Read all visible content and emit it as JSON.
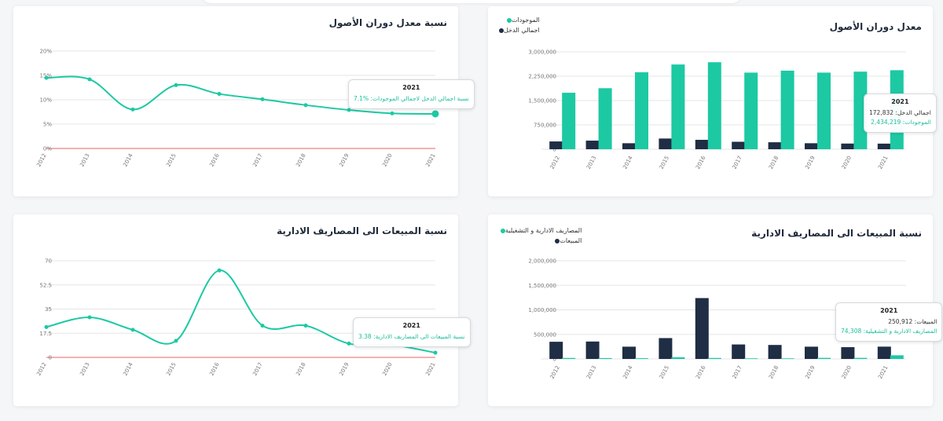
{
  "colors": {
    "teal": "#1cc9a3",
    "navy": "#1f2d45",
    "red": "#f08080",
    "grid": "#e5e5e5"
  },
  "cards": {
    "asset_turnover_line": {
      "title": "نسبة معدل دوران الأصول",
      "tooltip": {
        "year": "2021",
        "label": "نسبة اجمالي الدخل لاجمالي الموجودات:",
        "value": "%7.1"
      }
    },
    "asset_turnover_bars": {
      "title": "معدل دوران الأصول",
      "legend": [
        "الموجودات",
        "اجمالي الدخل"
      ],
      "tooltip": {
        "year": "2021",
        "income_label": "اجمالي الدخل:",
        "income_value": "172,832",
        "assets_label": "الموجودات:",
        "assets_value": "2,434,219"
      }
    },
    "sales_expense_line": {
      "title": "نسبة المبيعات الى المصاريف الادارية",
      "tooltip": {
        "year": "2021",
        "label": "نسبة المبيعات الى المصاريف الادارية:",
        "value": "3.38"
      }
    },
    "sales_expense_bars": {
      "title": "نسبة المبيعات الى المصاريف الادارية",
      "legend": [
        "المصاريف الادارية و التشغيلية",
        "المبيعات"
      ],
      "tooltip": {
        "year": "2021",
        "sales_label": "المبيعات:",
        "sales_value": "250,912",
        "expense_label": "المصاريف الادارية و التشغيلية:",
        "expense_value": "74,308"
      }
    }
  },
  "chart_data": [
    {
      "id": "asset_turnover_line",
      "type": "line",
      "title": "نسبة معدل دوران الأصول",
      "x": [
        "2012",
        "2013",
        "2014",
        "2015",
        "2016",
        "2017",
        "2018",
        "2019",
        "2020",
        "2021"
      ],
      "series": [
        {
          "name": "نسبة اجمالي الدخل لاجمالي الموجودات",
          "values": [
            14.5,
            14.2,
            8.0,
            13.0,
            11.2,
            10.1,
            8.9,
            7.9,
            7.2,
            7.1
          ]
        }
      ],
      "yticks": [
        0,
        5,
        10,
        15,
        20
      ],
      "ytick_labels": [
        "0%",
        "5%",
        "10%",
        "15%",
        "20%"
      ],
      "ylim": [
        0,
        20
      ]
    },
    {
      "id": "asset_turnover_bars",
      "type": "bar",
      "title": "معدل دوران الأصول",
      "categories": [
        "2012",
        "2013",
        "2014",
        "2015",
        "2016",
        "2017",
        "2018",
        "2019",
        "2020",
        "2021"
      ],
      "series": [
        {
          "name": "اجمالي الدخل",
          "values": [
            240000,
            265000,
            185000,
            330000,
            290000,
            230000,
            215000,
            185000,
            175000,
            172832
          ]
        },
        {
          "name": "الموجودات",
          "values": [
            1740000,
            1880000,
            2370000,
            2610000,
            2680000,
            2360000,
            2420000,
            2360000,
            2390000,
            2434219
          ]
        }
      ],
      "yticks": [
        0,
        750000,
        1500000,
        2250000,
        3000000
      ],
      "ytick_labels": [
        "0",
        "750,000",
        "1,500,000",
        "2,250,000",
        "3,000,000"
      ],
      "ylim": [
        0,
        3000000
      ]
    },
    {
      "id": "sales_expense_line",
      "type": "line",
      "title": "نسبة المبيعات الى المصاريف الادارية",
      "x": [
        "2012",
        "2013",
        "2014",
        "2015",
        "2016",
        "2017",
        "2018",
        "2019",
        "2020",
        "2021"
      ],
      "series": [
        {
          "name": "نسبة المبيعات الى المصاريف الادارية",
          "values": [
            22,
            29,
            20,
            12,
            63,
            23,
            23,
            10,
            9,
            3.38
          ]
        }
      ],
      "yticks": [
        0,
        17.5,
        35,
        52.5,
        70
      ],
      "ytick_labels": [
        "0",
        "17.5",
        "35",
        "52.5",
        "70"
      ],
      "ylim": [
        0,
        70
      ]
    },
    {
      "id": "sales_expense_bars",
      "type": "bar",
      "title": "نسبة المبيعات الى المصاريف الادارية",
      "categories": [
        "2012",
        "2013",
        "2014",
        "2015",
        "2016",
        "2017",
        "2018",
        "2019",
        "2020",
        "2021"
      ],
      "series": [
        {
          "name": "المبيعات",
          "values": [
            350000,
            355000,
            250000,
            425000,
            1240000,
            295000,
            285000,
            250000,
            240000,
            250912
          ]
        },
        {
          "name": "المصاريف الادارية و التشغيلية",
          "values": [
            20000,
            18000,
            15000,
            35000,
            20000,
            12000,
            12000,
            22000,
            22000,
            74308
          ]
        }
      ],
      "yticks": [
        0,
        500000,
        1000000,
        1500000,
        2000000
      ],
      "ytick_labels": [
        "0",
        "500,000",
        "1,000,000",
        "1,500,000",
        "2,000,000"
      ],
      "ylim": [
        0,
        2000000
      ]
    }
  ]
}
